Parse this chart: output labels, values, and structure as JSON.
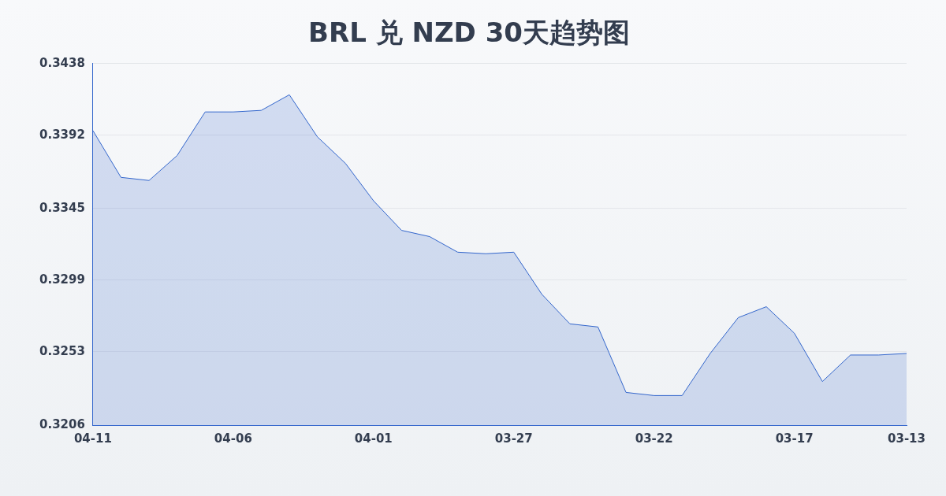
{
  "chart_data": {
    "type": "area",
    "title": "BRL 兑 NZD 30天趋势图",
    "categories": [
      "04-11",
      null,
      null,
      null,
      null,
      "04-06",
      null,
      null,
      null,
      null,
      "04-01",
      null,
      null,
      null,
      null,
      "03-27",
      null,
      null,
      null,
      null,
      "03-22",
      null,
      null,
      null,
      null,
      "03-17",
      null,
      null,
      null,
      "03-13"
    ],
    "series": [
      {
        "color": "#3366cc",
        "values": [
          0.3395,
          0.3365,
          0.3363,
          0.3379,
          0.3407,
          0.3407,
          0.3408,
          0.3418,
          0.3391,
          0.3374,
          0.335,
          0.3331,
          0.3327,
          0.3317,
          0.3316,
          0.3317,
          0.329,
          0.3271,
          0.3269,
          0.3227,
          0.3225,
          0.3225,
          0.3252,
          0.3275,
          0.3282,
          0.3265,
          0.3234,
          0.3251,
          0.3251,
          0.3252
        ]
      }
    ],
    "ylim": [
      0.3206,
      0.3438
    ],
    "yticks": [
      0.3206,
      0.3253,
      0.3299,
      0.3345,
      0.3392,
      0.3438
    ],
    "grid": "y",
    "legend": false
  }
}
